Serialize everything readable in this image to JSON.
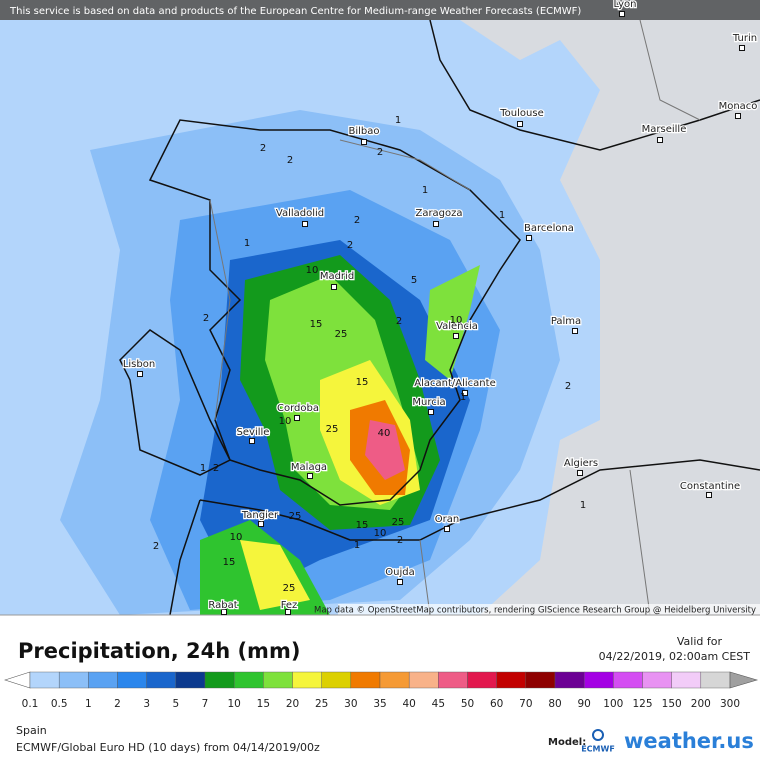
{
  "header": {
    "notice": "This service is based on data and products of the European Centre for Medium-range Weather Forecasts (ECMWF)"
  },
  "map": {
    "cities": [
      "Lyon",
      "Turin",
      "Monaco",
      "Toulouse",
      "Marseille",
      "Bilbao",
      "Valladolid",
      "Zaragoza",
      "Barcelona",
      "Madrid",
      "Valencia",
      "Palma",
      "Lisbon",
      "Alacant/Alicante",
      "Murcia",
      "Cordoba",
      "Seville",
      "Malaga",
      "Algiers",
      "Constantine",
      "Tangier",
      "Oran",
      "Oujda",
      "Rabat",
      "Fez"
    ],
    "contour_labels": [
      1,
      2,
      2,
      2,
      1,
      2,
      1,
      1,
      2,
      10,
      5,
      15,
      25,
      2,
      10,
      2,
      15,
      2,
      10,
      25,
      40,
      1,
      1,
      2,
      25,
      15,
      10,
      25,
      2,
      1,
      10,
      15,
      25,
      2,
      1
    ],
    "attribution": "Map data © OpenStreetMap contributors, rendering GIScience Research Group @ Heidelberg University"
  },
  "legend": {
    "title": "Precipitation, 24h (mm)",
    "valid_label": "Valid for",
    "valid_time": "04/22/2019, 02:00am CEST",
    "ticks": [
      0.1,
      0.5,
      1,
      2,
      3,
      5,
      7,
      10,
      15,
      20,
      25,
      30,
      35,
      40,
      45,
      50,
      60,
      70,
      80,
      90,
      100,
      125,
      150,
      200,
      300
    ],
    "colors": [
      "#b3d5fb",
      "#8cbff7",
      "#5aa2f2",
      "#2b86ec",
      "#1a66cc",
      "#0c3a8e",
      "#139a1c",
      "#2fc42f",
      "#7ee13c",
      "#f5f53c",
      "#dcd000",
      "#f07a00",
      "#f59a35",
      "#f8b289",
      "#ee5c86",
      "#e2184e",
      "#c20000",
      "#8e0000",
      "#6c0094",
      "#a400e4",
      "#d44ef2",
      "#e892f2",
      "#f2ccf8",
      "#d6d6d6"
    ],
    "under_color": "#ffffff",
    "over_color": "#a0a0a0"
  },
  "footer": {
    "region": "Spain",
    "model_run": "ECMWF/Global Euro HD (10 days) from 04/14/2019/00z",
    "model_label": "Model:",
    "model_logo": "ECMWF",
    "brand": "weather.us"
  }
}
